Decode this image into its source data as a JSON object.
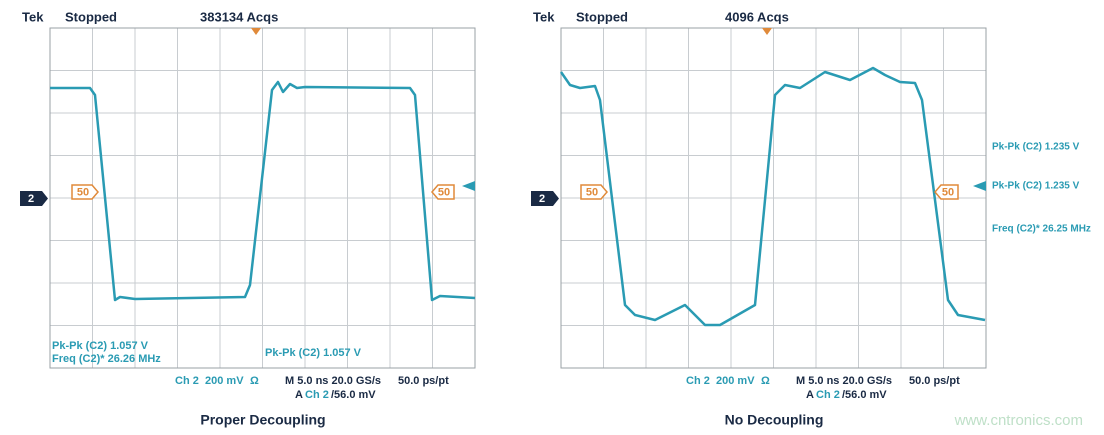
{
  "panels": [
    {
      "header": {
        "brand": "Tek",
        "status": "Stopped",
        "acquisitions": "383134 Acqs"
      },
      "channel_marker": "2",
      "level_markers": [
        "50",
        "50"
      ],
      "measurements": [
        "Pk-Pk (C2) 1.057 V",
        "Freq (C2)*  26.26 MHz",
        "Pk-Pk (C2) 1.057 V"
      ],
      "footer": {
        "channel": "Ch 2",
        "scale": "200 mV",
        "coupling": "Ω",
        "timebase": "M 5.0 ns 20.0 GS/s",
        "trigger_prefix": "A",
        "trigger_channel": "Ch 2",
        "trigger_level": "/56.0 mV",
        "resolution": "50.0 ps/pt"
      },
      "caption": "Proper Decoupling"
    },
    {
      "header": {
        "brand": "Tek",
        "status": "Stopped",
        "acquisitions": "4096 Acqs"
      },
      "channel_marker": "2",
      "level_markers": [
        "50",
        "50"
      ],
      "measurements": [
        "Pk-Pk (C2)  1.235 V",
        "Pk-Pk (C2)  1.235 V",
        "Freq (C2)*  26.25 MHz"
      ],
      "footer": {
        "channel": "Ch 2",
        "scale": "200 mV",
        "coupling": "Ω",
        "timebase": "M 5.0 ns 20.0 GS/s",
        "trigger_prefix": "A",
        "trigger_channel": "Ch 2",
        "trigger_level": "/56.0 mV",
        "resolution": "50.0 ps/pt"
      },
      "caption": "No Decoupling"
    }
  ],
  "watermark": "www.cntronics.com"
}
